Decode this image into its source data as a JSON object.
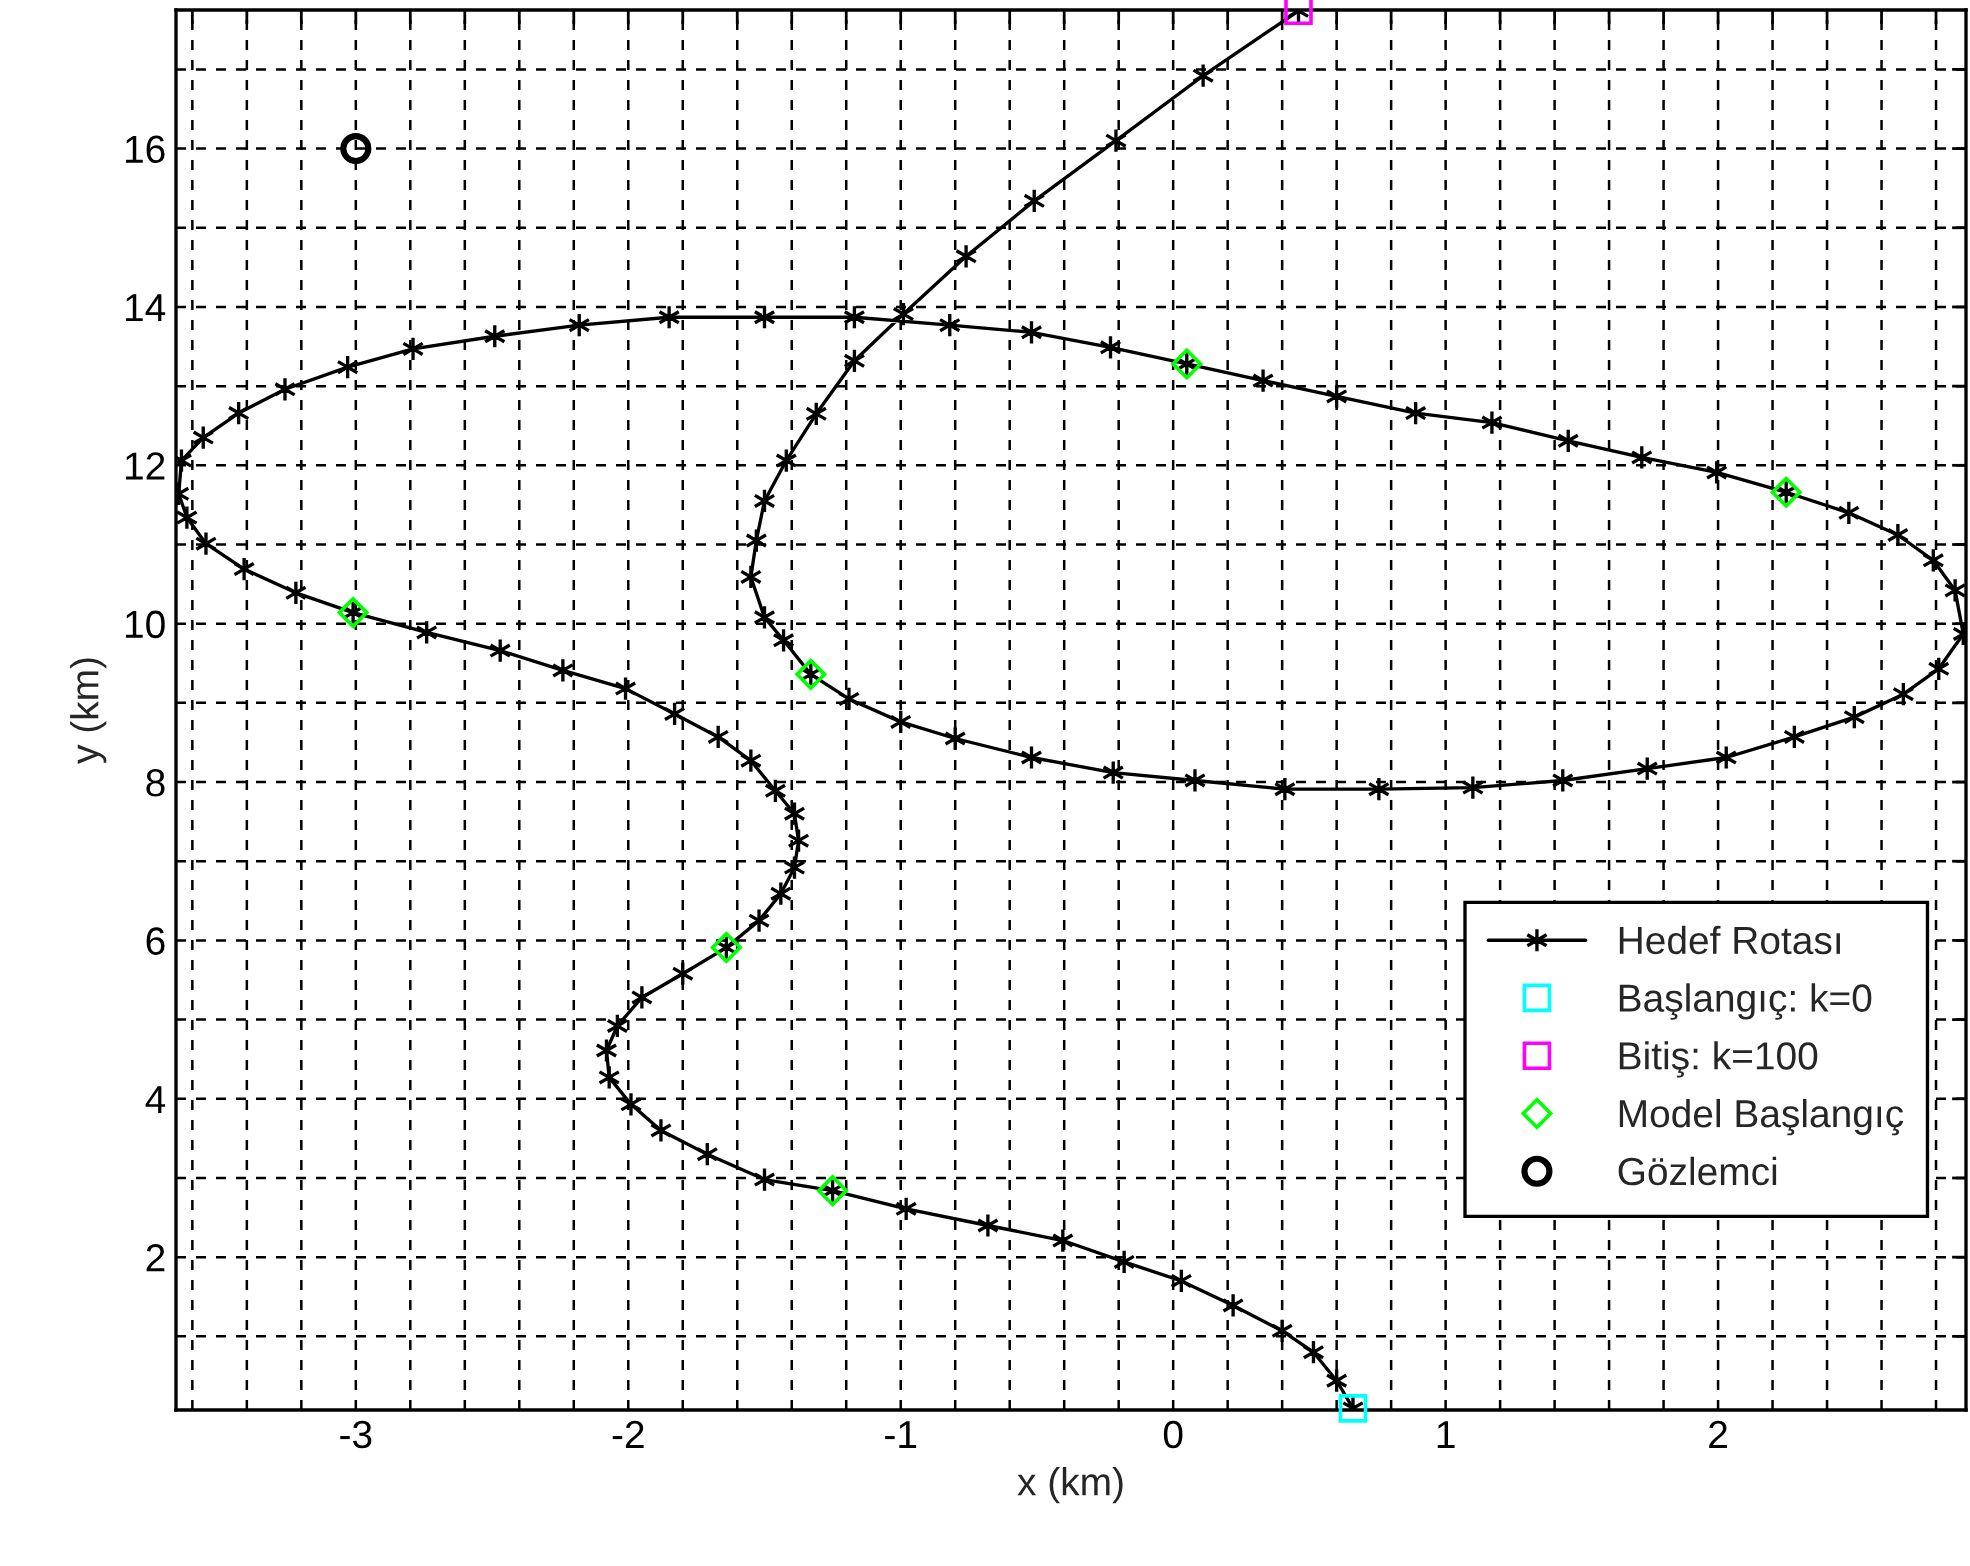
{
  "chart_data": {
    "type": "line",
    "xlabel": "x (km)",
    "ylabel": "y (km)",
    "xlim": [
      -3.66,
      2.91
    ],
    "ylim": [
      0.07,
      17.75
    ],
    "xticks": [
      {
        "value": -3.6,
        "label": null
      },
      {
        "value": -3.4,
        "label": null
      },
      {
        "value": -3.2,
        "label": null
      },
      -3,
      {
        "value": -2.8,
        "label": null
      },
      {
        "value": -2.6,
        "label": null
      },
      {
        "value": -2.4,
        "label": null
      },
      {
        "value": -2.2,
        "label": null
      },
      -2,
      {
        "value": -1.8,
        "label": null
      },
      {
        "value": -1.6,
        "label": null
      },
      {
        "value": -1.4,
        "label": null
      },
      {
        "value": -1.2,
        "label": null
      },
      -1,
      {
        "value": -0.8,
        "label": null
      },
      {
        "value": -0.6,
        "label": null
      },
      {
        "value": -0.4,
        "label": null
      },
      {
        "value": -0.2,
        "label": null
      },
      0,
      {
        "value": 0.2,
        "label": null
      },
      {
        "value": 0.4,
        "label": null
      },
      {
        "value": 0.6,
        "label": null
      },
      {
        "value": 0.8,
        "label": null
      },
      1,
      {
        "value": 1.2,
        "label": null
      },
      {
        "value": 1.4,
        "label": null
      },
      {
        "value": 1.6,
        "label": null
      },
      {
        "value": 1.8,
        "label": null
      },
      2,
      {
        "value": 2.2,
        "label": null
      },
      {
        "value": 2.4,
        "label": null
      },
      {
        "value": 2.6,
        "label": null
      },
      {
        "value": 2.8,
        "label": null
      }
    ],
    "yticks": [
      {
        "value": 1,
        "label": null
      },
      2,
      {
        "value": 3,
        "label": null
      },
      4,
      {
        "value": 5,
        "label": null
      },
      6,
      {
        "value": 7,
        "label": null
      },
      8,
      {
        "value": 9,
        "label": null
      },
      10,
      {
        "value": 11,
        "label": null
      },
      12,
      {
        "value": 13,
        "label": null
      },
      14,
      {
        "value": 15,
        "label": null
      },
      16,
      {
        "value": 17,
        "label": null
      }
    ],
    "grid": true,
    "legend": "bottom right",
    "line_style": "solid",
    "series": [
      {
        "name": "Hedef Rotası",
        "marker": "cross",
        "color": "#000000",
        "x": [
          0.66,
          0.6,
          0.515,
          0.4,
          0.22,
          0.03,
          -0.18,
          -0.405,
          -0.68,
          -0.98,
          -1.25,
          -1.5,
          -1.71,
          -1.88,
          -1.99,
          -2.07,
          -2.08,
          -2.04,
          -1.95,
          -1.8,
          -1.64,
          -1.52,
          -1.44,
          -1.39,
          -1.375,
          -1.39,
          -1.46,
          -1.55,
          -1.67,
          -1.83,
          -2.01,
          -2.24,
          -2.47,
          -2.74,
          -3.01,
          -3.22,
          -3.41,
          -3.55,
          -3.62,
          -3.65,
          -3.64,
          -3.56,
          -3.43,
          -3.26,
          -3.03,
          -2.79,
          -2.49,
          -2.18,
          -1.85,
          -1.5,
          -1.17,
          -0.82,
          -0.52,
          -0.23,
          0.05,
          0.33,
          0.6,
          0.89,
          1.17,
          1.45,
          1.72,
          1.995,
          2.25,
          2.48,
          2.66,
          2.79,
          2.87,
          2.9,
          2.81,
          2.68,
          2.5,
          2.28,
          2.03,
          1.74,
          1.43,
          1.1,
          0.755,
          0.41,
          0.08,
          -0.22,
          -0.52,
          -0.8,
          -1.0,
          -1.19,
          -1.33,
          -1.43,
          -1.5,
          -1.55,
          -1.53,
          -1.5,
          -1.42,
          -1.31,
          -1.17,
          -0.99,
          -0.76,
          -0.51,
          -0.21,
          0.11,
          0.46
        ],
        "values": [
          0.09,
          0.44,
          0.8,
          1.07,
          1.39,
          1.7,
          1.94,
          2.21,
          2.4,
          2.61,
          2.84,
          2.98,
          3.3,
          3.6,
          3.93,
          4.27,
          4.61,
          4.92,
          5.28,
          5.58,
          5.91,
          6.25,
          6.59,
          6.92,
          7.26,
          7.6,
          7.89,
          8.27,
          8.57,
          8.86,
          9.18,
          9.41,
          9.66,
          9.89,
          10.14,
          10.39,
          10.69,
          11.01,
          11.34,
          11.64,
          12.06,
          12.35,
          12.66,
          12.96,
          13.24,
          13.47,
          13.63,
          13.77,
          13.87,
          13.87,
          13.87,
          13.77,
          13.68,
          13.49,
          13.28,
          13.07,
          12.87,
          12.66,
          12.54,
          12.31,
          12.1,
          11.91,
          11.66,
          11.4,
          11.12,
          10.8,
          10.42,
          9.87,
          9.43,
          9.11,
          8.82,
          8.57,
          8.31,
          8.17,
          8.02,
          7.93,
          7.91,
          7.91,
          8.02,
          8.12,
          8.31,
          8.55,
          8.76,
          9.05,
          9.36,
          9.79,
          10.08,
          10.59,
          11.05,
          11.55,
          12.06,
          12.65,
          13.32,
          13.91,
          14.64,
          15.34,
          16.1,
          16.92,
          17.74
        ]
      },
      {
        "name": "Başlangıç: k=0",
        "type": "scatter",
        "marker": "square",
        "color": "#00ffff",
        "x": [
          0.66
        ],
        "values": [
          0.09
        ]
      },
      {
        "name": "Bitiş: k=100",
        "type": "scatter",
        "marker": "square",
        "color": "#ff00ff",
        "x": [
          0.46
        ],
        "values": [
          17.74
        ]
      },
      {
        "name": "Model Başlangıç",
        "type": "scatter",
        "marker": "diamond",
        "color": "#00ff00",
        "x": [
          -1.25,
          -1.64,
          -3.01,
          0.05,
          2.25,
          -1.33
        ],
        "values": [
          2.84,
          5.91,
          10.14,
          13.28,
          11.66,
          9.36
        ]
      },
      {
        "name": "Gözlemci",
        "type": "scatter",
        "marker": "circle",
        "color": "#000000",
        "x": [
          -3.0
        ],
        "values": [
          16.0
        ]
      }
    ]
  }
}
